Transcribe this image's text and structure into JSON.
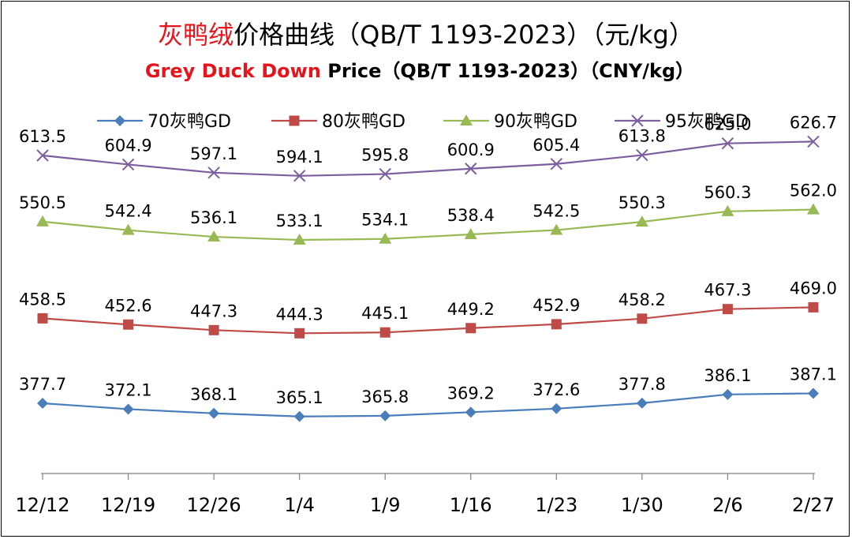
{
  "title": {
    "cn_red": "灰鸭绒",
    "cn_black": "价格曲线（QB/T 1193-2023）（元/kg）",
    "en_red": "Grey Duck Down",
    "en_black": " Price（QB/T 1193-2023）（CNY/kg）"
  },
  "chart_data": {
    "type": "line",
    "categories": [
      "12/12",
      "12/19",
      "12/26",
      "1/4",
      "1/9",
      "1/16",
      "1/23",
      "1/30",
      "2/6",
      "2/27"
    ],
    "ylim": [
      320,
      660
    ],
    "grid": false,
    "legend_position": "top",
    "series": [
      {
        "name": "70灰鸭GD",
        "marker": "diamond",
        "color": "#4a7ebb",
        "values": [
          377.7,
          372.1,
          368.1,
          365.1,
          365.8,
          369.2,
          372.6,
          377.8,
          386.1,
          387.1
        ]
      },
      {
        "name": "80灰鸭GD",
        "marker": "square",
        "color": "#be4b48",
        "values": [
          458.5,
          452.6,
          447.3,
          444.3,
          445.1,
          449.2,
          452.9,
          458.2,
          467.3,
          469.0
        ]
      },
      {
        "name": "90灰鸭GD",
        "marker": "triangle",
        "color": "#98b954",
        "values": [
          550.5,
          542.4,
          536.1,
          533.1,
          534.1,
          538.4,
          542.5,
          550.3,
          560.3,
          562.0
        ]
      },
      {
        "name": "95灰鸭GD",
        "marker": "x",
        "color": "#7d5fa0",
        "values": [
          613.5,
          604.9,
          597.1,
          594.1,
          595.8,
          600.9,
          605.4,
          613.8,
          625.0,
          626.7
        ]
      }
    ]
  }
}
